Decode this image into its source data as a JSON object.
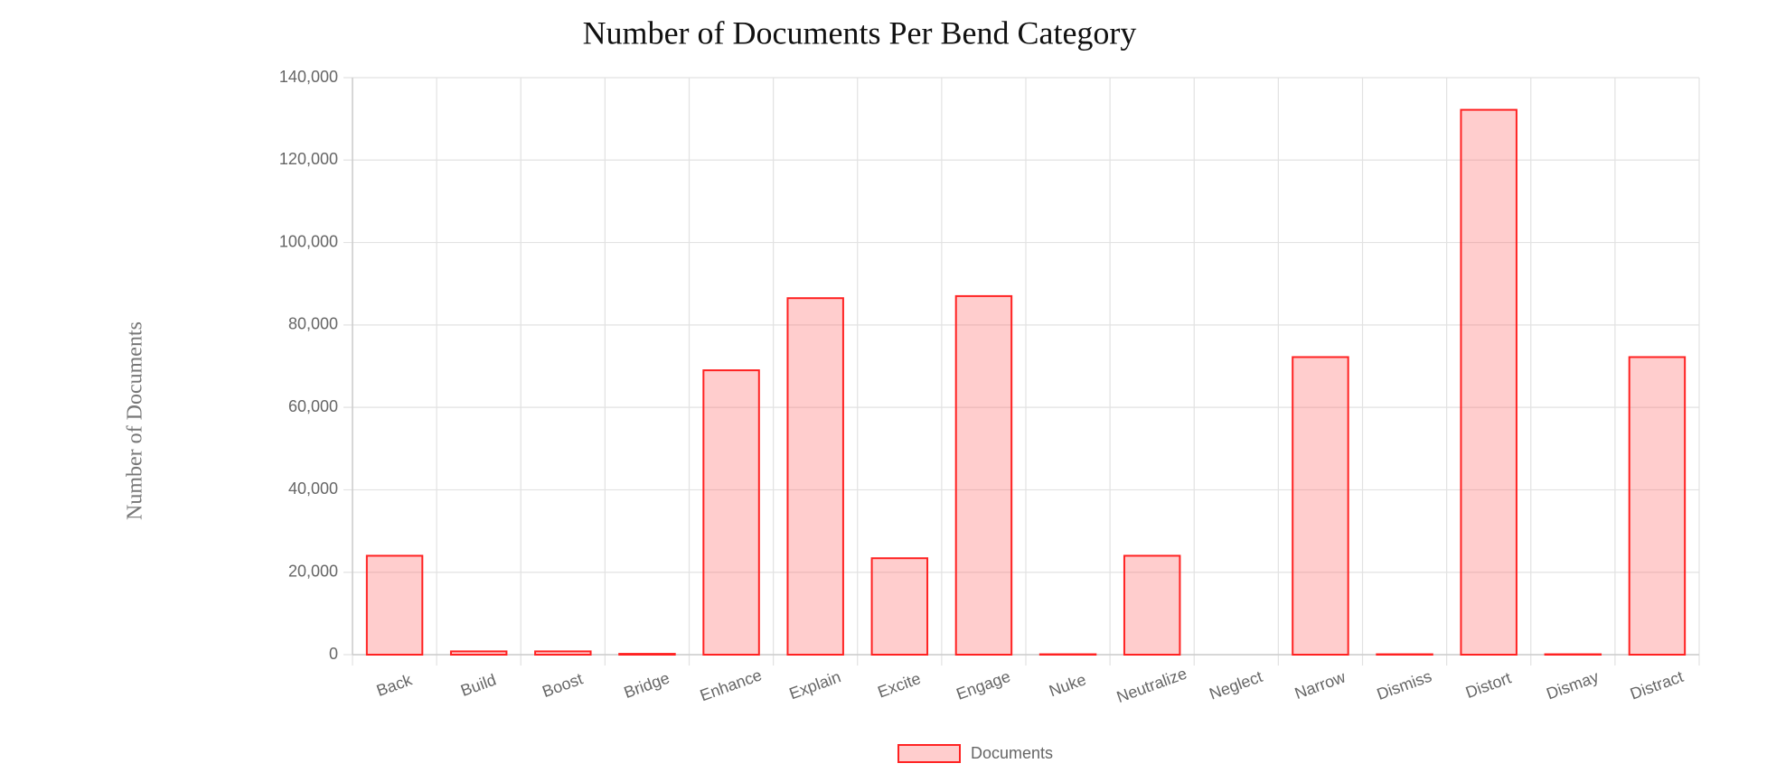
{
  "chart_data": {
    "type": "bar",
    "title": "Number of Documents Per Bend Category",
    "y_label": "Number of Documents",
    "categories": [
      "Back",
      "Build",
      "Boost",
      "Bridge",
      "Enhance",
      "Explain",
      "Excite",
      "Engage",
      "Nuke",
      "Neutralize",
      "Neglect",
      "Narrow",
      "Dismiss",
      "Distort",
      "Dismay",
      "Distract"
    ],
    "series": [
      {
        "name": "Documents",
        "color": "#ff2222",
        "fill": "rgba(255,99,99,0.32)",
        "values": [
          24000,
          800,
          800,
          200,
          69000,
          86500,
          23400,
          87000,
          100,
          24000,
          0,
          72200,
          100,
          132200,
          100,
          72200
        ]
      }
    ],
    "ylim": [
      0,
      140000
    ],
    "yticks": [
      0,
      {
        "value": 20000,
        "label": "20,000"
      },
      {
        "value": 40000,
        "label": "40,000"
      },
      {
        "value": 60000,
        "label": "60,000"
      },
      {
        "value": 80000,
        "label": "80,000"
      },
      {
        "value": 100000,
        "label": "100,000"
      },
      {
        "value": 120000,
        "label": "120,000"
      },
      {
        "value": 140000,
        "label": "140,000"
      }
    ],
    "grid": true,
    "legend": "bottom"
  }
}
